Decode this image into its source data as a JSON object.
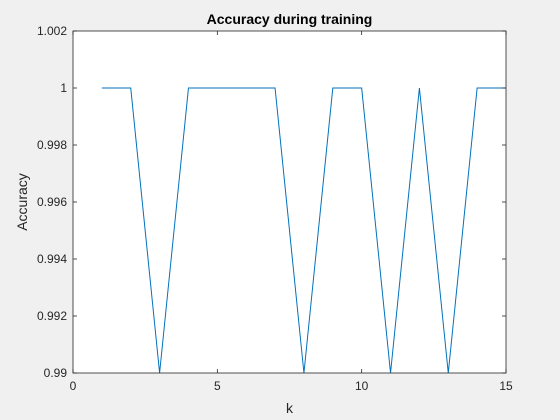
{
  "chart_data": {
    "type": "line",
    "title": "Accuracy during training",
    "xlabel": "k",
    "ylabel": "Accuracy",
    "xlim": [
      0,
      15
    ],
    "ylim": [
      0.99,
      1.002
    ],
    "xticks": [
      0,
      5,
      10,
      15
    ],
    "xtick_labels": [
      "0",
      "5",
      "10",
      "15"
    ],
    "yticks": [
      0.99,
      0.992,
      0.994,
      0.996,
      0.998,
      1.0,
      1.002
    ],
    "ytick_labels": [
      "0.99",
      "0.992",
      "0.994",
      "0.996",
      "0.998",
      "1",
      "1.002"
    ],
    "grid": false,
    "series": [
      {
        "x": [
          1,
          2,
          3,
          4,
          5,
          6,
          7,
          8,
          9,
          10,
          11,
          12,
          13,
          14,
          15
        ],
        "values": [
          1,
          1,
          0.99,
          1,
          1,
          1,
          1,
          0.99,
          1,
          1,
          0.99,
          1,
          0.99,
          1,
          1
        ],
        "color": "#0072bd"
      }
    ]
  },
  "colors": {
    "figure_background": "#f0f0f0",
    "axes_background": "#ffffff",
    "axis_color": "#262626",
    "line_color": "#0072bd"
  }
}
